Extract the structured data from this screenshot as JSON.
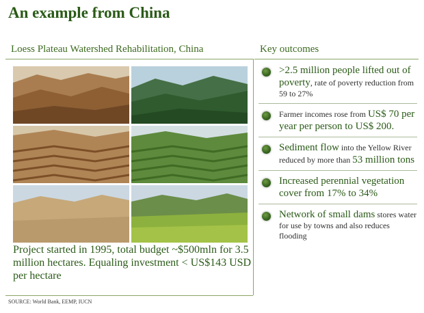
{
  "title": "An example from China",
  "left_heading": "Loess Plateau Watershed Rehabilitation, China",
  "right_heading": "Key outcomes",
  "summary": "Project started in 1995, total budget ~$500mln for 3.5 million hectares. Equaling investment < US$143 USD per hectare",
  "source": "SOURCE: World Bank, EEMP, IUCN",
  "outcomes": [
    {
      "parts": [
        {
          "t": ">2.5 million people lifted out of poverty",
          "hl": true
        },
        {
          "t": ", rate of poverty reduction from 59 to 27%",
          "hl": false
        }
      ]
    },
    {
      "parts": [
        {
          "t": "Farmer incomes rose from ",
          "hl": false
        },
        {
          "t": "US$ 70 per year per person to US$ 200.",
          "hl": true
        }
      ]
    },
    {
      "parts": [
        {
          "t": "Sediment flow",
          "hl": true
        },
        {
          "t": " into the Yellow River reduced by more than ",
          "hl": false
        },
        {
          "t": "53 million tons",
          "hl": true
        }
      ]
    },
    {
      "parts": [
        {
          "t": "Increased perennial vegetation cover from 17% to 34%",
          "hl": true
        }
      ]
    },
    {
      "parts": [
        {
          "t": "Network of small dams",
          "hl": true
        },
        {
          "t": " stores water for use by towns and also reduces flooding",
          "hl": false
        }
      ]
    }
  ],
  "photos": [
    {
      "name": "photo-before-1",
      "scene": "barren"
    },
    {
      "name": "photo-after-1",
      "scene": "forest"
    },
    {
      "name": "photo-before-2",
      "scene": "terrace-brown"
    },
    {
      "name": "photo-after-2",
      "scene": "terrace-green"
    },
    {
      "name": "photo-before-3",
      "scene": "dry-plain"
    },
    {
      "name": "photo-after-3",
      "scene": "crops"
    }
  ]
}
